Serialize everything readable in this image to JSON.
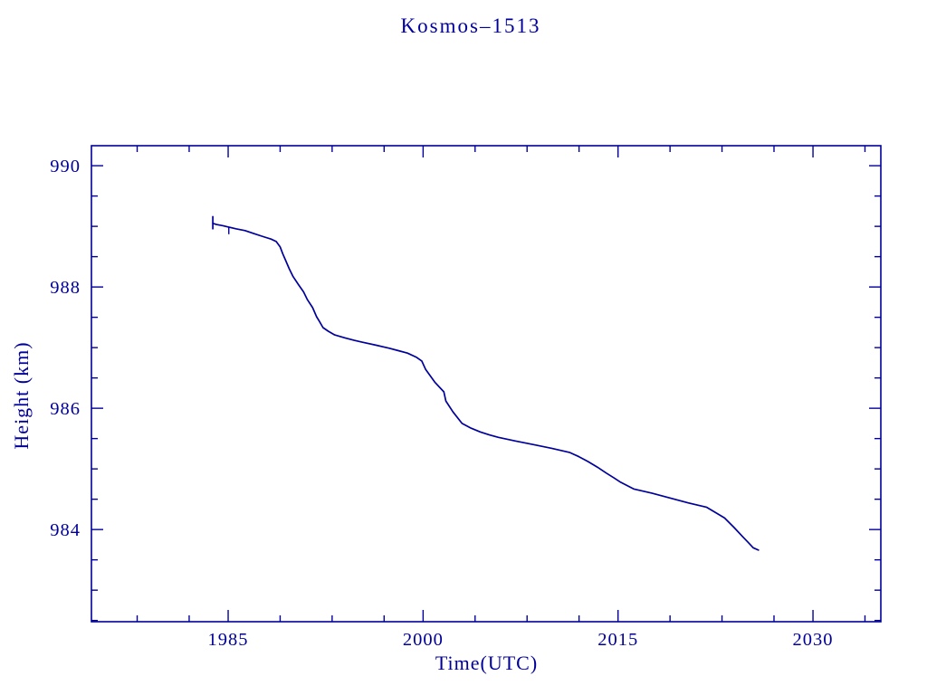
{
  "page": {
    "background_color": "#ffffff",
    "accent_color": "#00009B"
  },
  "chart_data": {
    "type": "line",
    "title": "Kosmos–1513",
    "xlabel": "Time(UTC)",
    "ylabel": "Height (km)",
    "xlim": [
      1974.48,
      2035.22
    ],
    "ylim": [
      982.48,
      990.33
    ],
    "x_major_ticks": [
      1985,
      2000,
      2015,
      2030
    ],
    "x_major_tick_labels": [
      "1985",
      "2000",
      "2015",
      "2030"
    ],
    "x_minor_ticks": [
      1978,
      1982,
      1989,
      1993,
      1997,
      2004,
      2008,
      2012,
      2019,
      2023,
      2027,
      2034
    ],
    "y_major_ticks": [
      990,
      988,
      986,
      984
    ],
    "y_major_tick_labels": [
      "990",
      "988",
      "986",
      "984"
    ],
    "y_minor_ticks": [
      989.5,
      989.0,
      988.5,
      987.5,
      987.0,
      986.5,
      985.5,
      985.0,
      984.5,
      983.5,
      983.0,
      982.5
    ],
    "grid": false,
    "legend": "none",
    "line_color": "#00009B",
    "series": [
      {
        "name": "orbit-height-km",
        "x": [
          1983.82,
          1984.1,
          1984.6,
          1985.0,
          1985.6,
          1986.3,
          1987.0,
          1987.7,
          1988.3,
          1988.7,
          1989.0,
          1989.2,
          1989.4,
          1989.7,
          1990.0,
          1990.4,
          1990.8,
          1991.1,
          1991.5,
          1991.8,
          1992.0,
          1992.3,
          1992.7,
          1993.2,
          1994.0,
          1994.7,
          1995.3,
          1996.4,
          1997.4,
          1998.1,
          1998.8,
          1999.5,
          1999.9,
          2000.2,
          2000.9,
          2001.6,
          2001.75,
          2002.3,
          2003.0,
          2003.7,
          2004.4,
          2005.1,
          2005.8,
          2007.1,
          2008.5,
          2009.9,
          2011.3,
          2012.0,
          2012.7,
          2013.4,
          2014.1,
          2014.7,
          2015.2,
          2016.2,
          2017.6,
          2019.0,
          2020.4,
          2021.8,
          2022.5,
          2023.2,
          2023.9,
          2024.6,
          2025.0,
          2025.4,
          2025.8
        ],
        "y": [
          989.05,
          989.03,
          989.01,
          988.99,
          988.96,
          988.93,
          988.88,
          988.83,
          988.79,
          988.75,
          988.66,
          988.55,
          988.45,
          988.3,
          988.17,
          988.04,
          987.92,
          987.79,
          987.66,
          987.51,
          987.44,
          987.33,
          987.27,
          987.21,
          987.16,
          987.12,
          987.09,
          987.04,
          986.99,
          986.95,
          986.91,
          986.84,
          986.78,
          986.64,
          986.43,
          986.27,
          986.12,
          985.94,
          985.75,
          985.67,
          985.61,
          985.56,
          985.52,
          985.46,
          985.4,
          985.34,
          985.27,
          985.2,
          985.12,
          985.03,
          984.93,
          984.85,
          984.78,
          984.67,
          984.6,
          984.52,
          984.44,
          984.37,
          984.28,
          984.19,
          984.04,
          983.88,
          983.79,
          983.7,
          983.66
        ]
      }
    ],
    "start_bar": {
      "x": 1983.82,
      "y_top": 989.17,
      "y_bottom": 988.95
    },
    "glitch": {
      "x": 1985.05,
      "y_top": 988.99,
      "y_bottom": 988.87
    }
  }
}
